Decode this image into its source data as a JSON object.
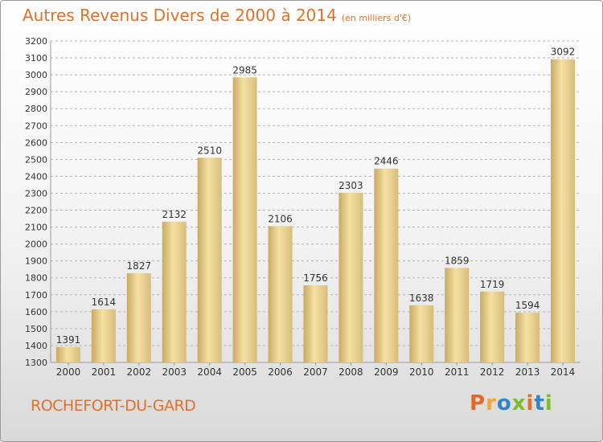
{
  "title": "Autres Revenus Divers de 2000 à 2014",
  "unit": "(en milliers d'€)",
  "town": "ROCHEFORT-DU-GARD",
  "logo": {
    "text": "Proxiti",
    "letters": [
      "P",
      "r",
      "o",
      "x",
      "i",
      "t",
      "i"
    ]
  },
  "colors": {
    "bar_light": "#f5e0a3",
    "bar_dark": "#c8aa64",
    "accent": "#e0712a",
    "grid": "#b5b5b5"
  },
  "chart_data": {
    "type": "bar",
    "categories": [
      "2000",
      "2001",
      "2002",
      "2003",
      "2004",
      "2005",
      "2006",
      "2007",
      "2008",
      "2009",
      "2010",
      "2011",
      "2012",
      "2013",
      "2014"
    ],
    "values": [
      1391,
      1614,
      1827,
      2132,
      2510,
      2985,
      2106,
      1756,
      2303,
      2446,
      1638,
      1859,
      1719,
      1594,
      3092
    ],
    "ylim": [
      1300,
      3200
    ],
    "yticks": [
      1300,
      1400,
      1500,
      1600,
      1700,
      1800,
      1900,
      2000,
      2100,
      2200,
      2300,
      2400,
      2500,
      2600,
      2700,
      2800,
      2900,
      3000,
      3100,
      3200
    ],
    "grid": true,
    "xlabel": "",
    "ylabel": ""
  }
}
